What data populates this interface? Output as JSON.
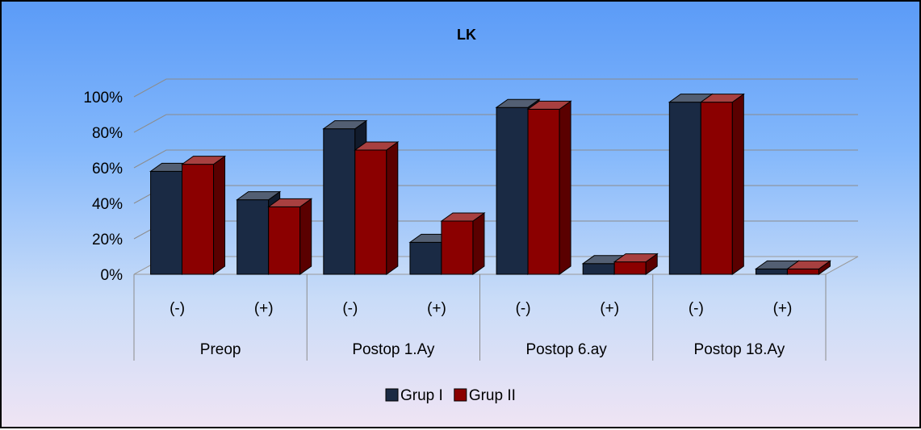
{
  "chart_data": {
    "type": "bar",
    "title": "LK",
    "groups": [
      "Preop",
      "Postop 1.Ay",
      "Postop 6.ay",
      "Postop 18.Ay"
    ],
    "subcategories": [
      "(-)",
      "(+)"
    ],
    "categories": [
      "Preop (-)",
      "Preop (+)",
      "Postop 1.Ay (-)",
      "Postop 1.Ay (+)",
      "Postop 6.ay (-)",
      "Postop 6.ay (+)",
      "Postop 18.Ay (-)",
      "Postop 18.Ay (+)"
    ],
    "series": [
      {
        "name": "Grup I",
        "values": [
          58,
          42,
          82,
          18,
          94,
          6,
          97,
          3
        ],
        "color": "#1a2a44"
      },
      {
        "name": "Grup II",
        "values": [
          62,
          38,
          70,
          30,
          93,
          7,
          97,
          3
        ],
        "color": "#8b0000"
      }
    ],
    "ylim": [
      0,
      100
    ],
    "yticks": [
      "0%",
      "20%",
      "40%",
      "60%",
      "80%",
      "100%"
    ],
    "xlabel": "",
    "ylabel": "",
    "grid": true,
    "legend": "bottom",
    "style": "3d-clustered-column"
  }
}
